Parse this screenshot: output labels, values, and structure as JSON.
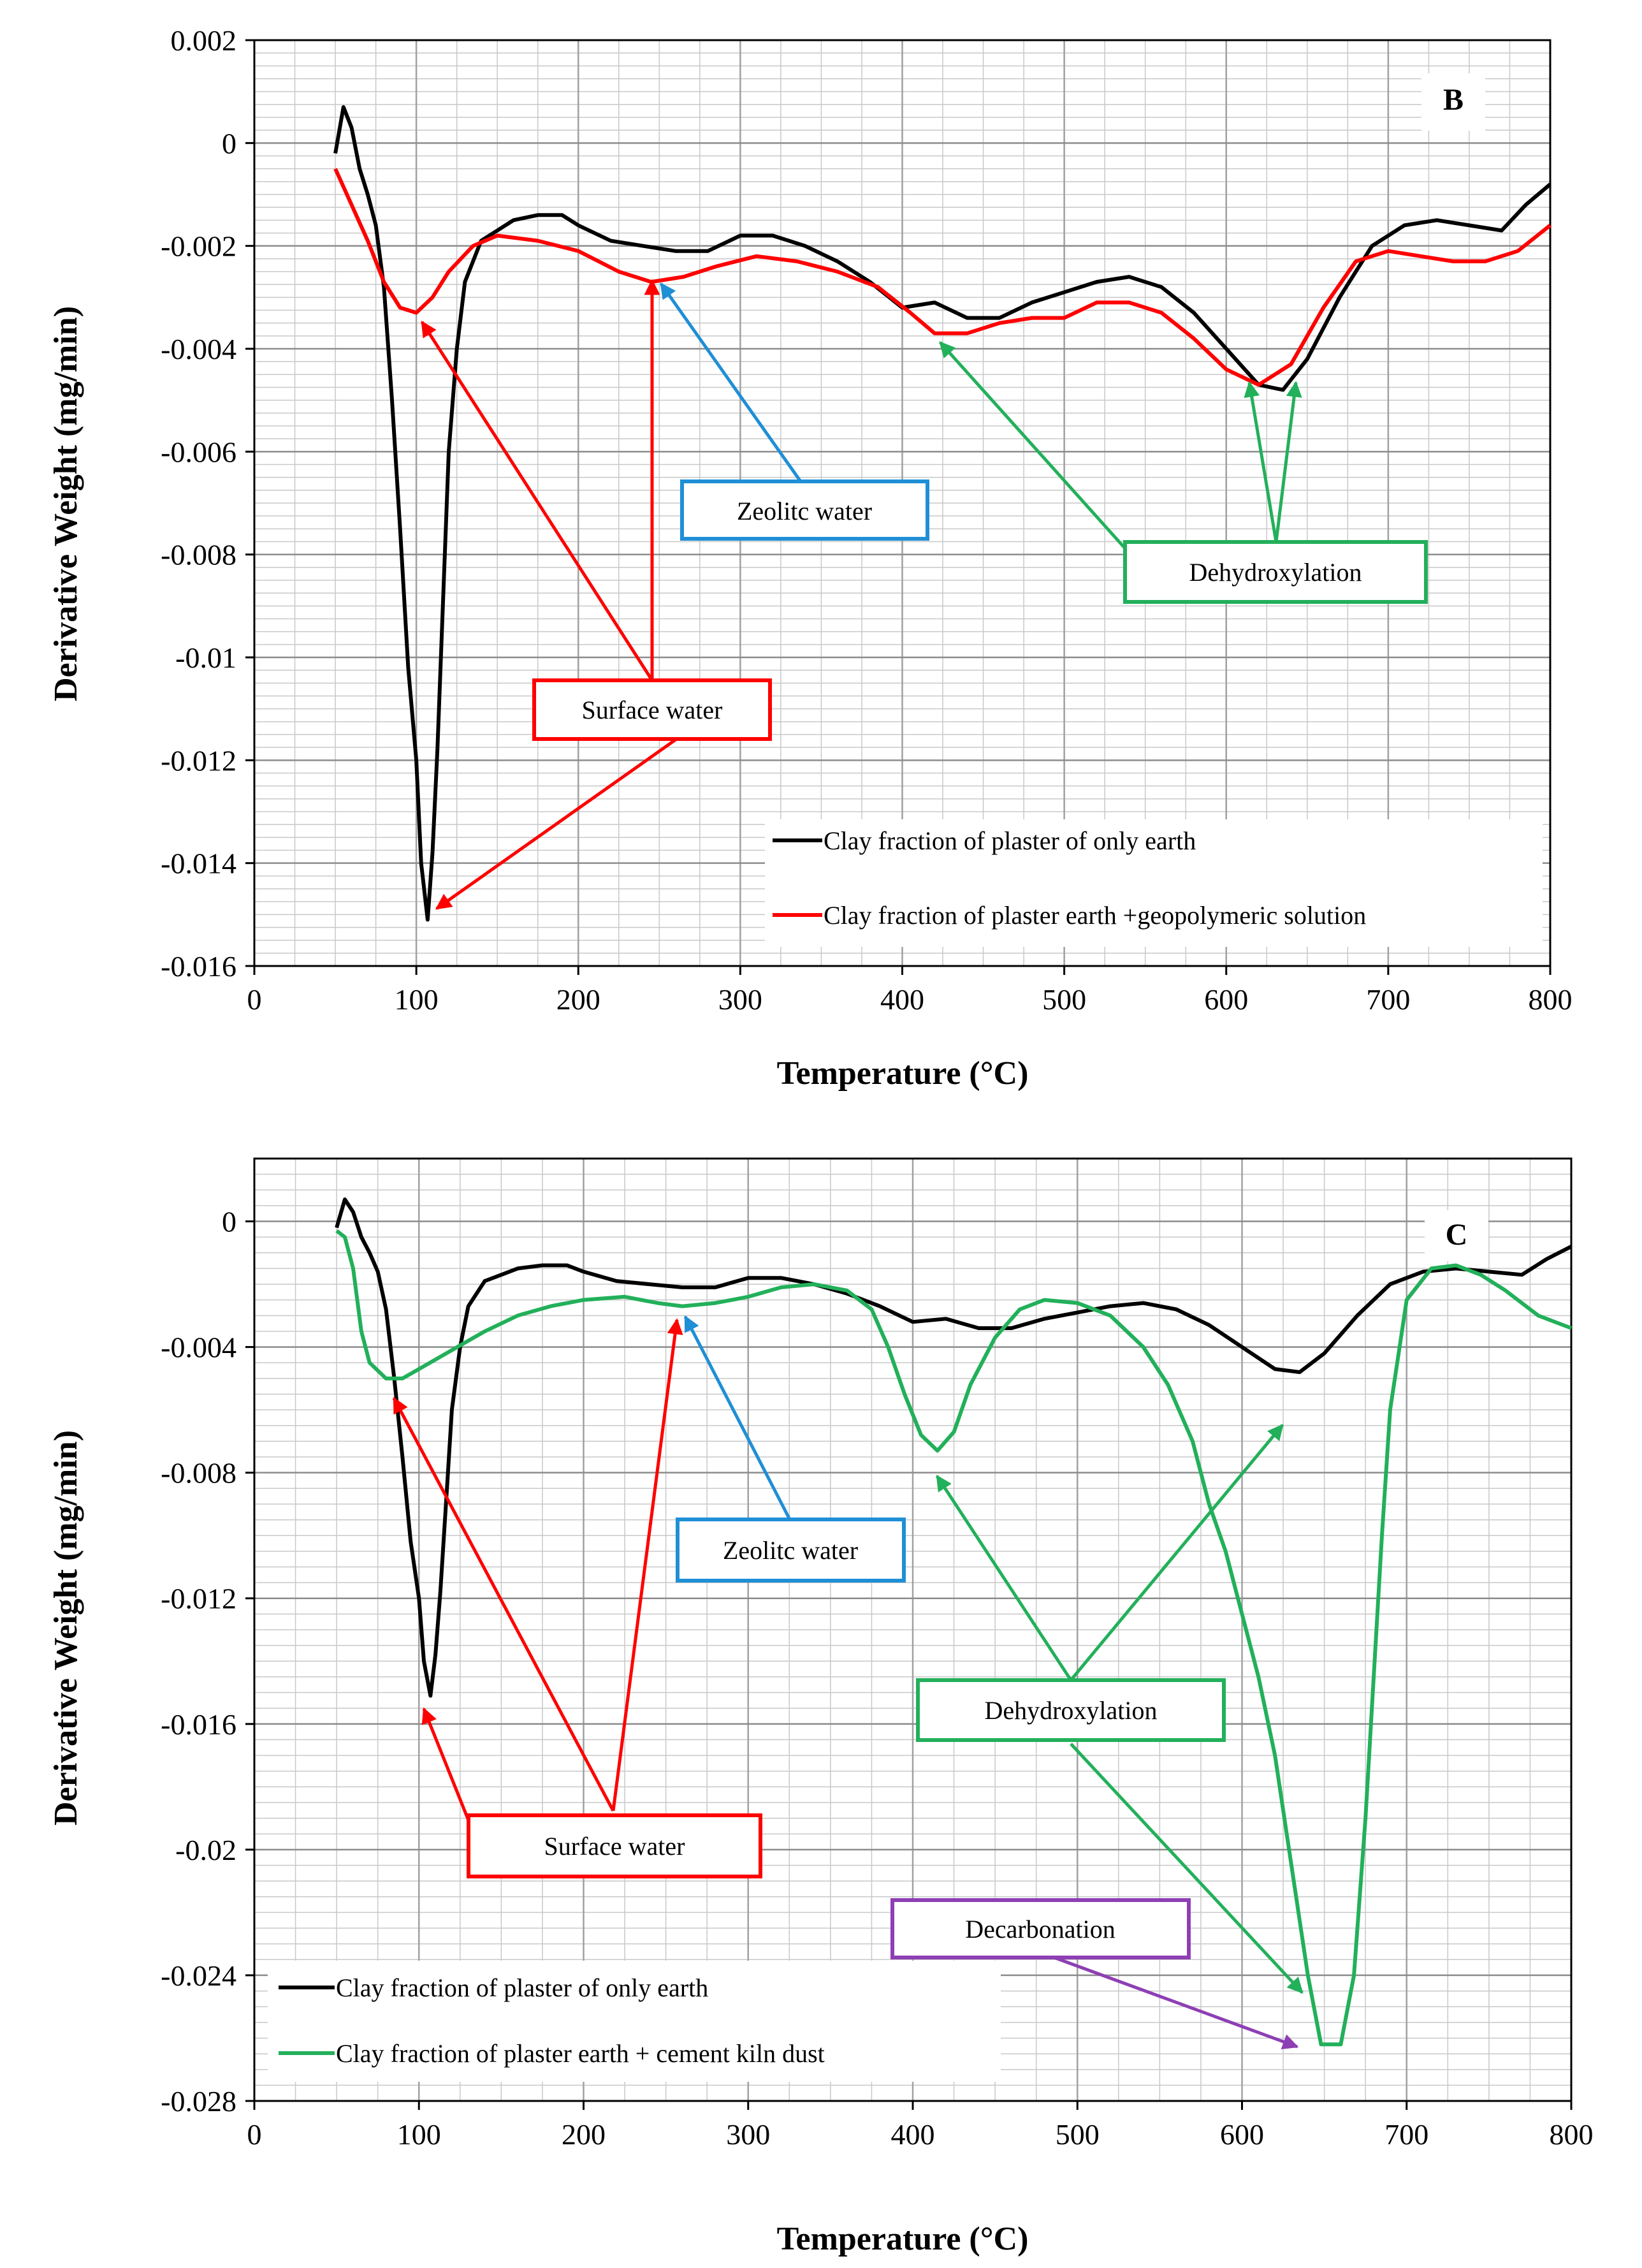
{
  "chart_data": [
    {
      "type": "line",
      "panel_label": "B",
      "xlabel": "Temperature (°C)",
      "ylabel": "Derivative Weight (mg/min)",
      "xlim": [
        0,
        800
      ],
      "ylim": [
        -0.016,
        0.002
      ],
      "x_ticks": [
        0,
        100,
        200,
        300,
        400,
        500,
        600,
        700,
        800
      ],
      "y_ticks": [
        0.002,
        0,
        -0.002,
        -0.004,
        -0.006,
        -0.008,
        -0.01,
        -0.012,
        -0.014,
        -0.016
      ],
      "x_tick_labels": [
        "0",
        "100",
        "200",
        "300",
        "400",
        "500",
        "600",
        "700",
        "800"
      ],
      "y_tick_labels": [
        "0.002",
        "0",
        "-0.002",
        "-0.004",
        "-0.006",
        "-0.008",
        "-0.01",
        "-0.012",
        "-0.014",
        "-0.016"
      ],
      "series": [
        {
          "name": "Clay fraction of plaster of only earth",
          "color": "#000000",
          "points": [
            [
              50,
              -0.0002
            ],
            [
              55,
              0.0007
            ],
            [
              60,
              0.0003
            ],
            [
              65,
              -0.0005
            ],
            [
              70,
              -0.001
            ],
            [
              75,
              -0.0016
            ],
            [
              80,
              -0.0028
            ],
            [
              85,
              -0.005
            ],
            [
              90,
              -0.0075
            ],
            [
              95,
              -0.0102
            ],
            [
              100,
              -0.012
            ],
            [
              103,
              -0.014
            ],
            [
              107,
              -0.0151
            ],
            [
              110,
              -0.0138
            ],
            [
              113,
              -0.0118
            ],
            [
              117,
              -0.0085
            ],
            [
              120,
              -0.006
            ],
            [
              125,
              -0.004
            ],
            [
              130,
              -0.0027
            ],
            [
              140,
              -0.0019
            ],
            [
              150,
              -0.0017
            ],
            [
              160,
              -0.0015
            ],
            [
              175,
              -0.0014
            ],
            [
              190,
              -0.0014
            ],
            [
              200,
              -0.0016
            ],
            [
              220,
              -0.0019
            ],
            [
              240,
              -0.002
            ],
            [
              260,
              -0.0021
            ],
            [
              280,
              -0.0021
            ],
            [
              300,
              -0.0018
            ],
            [
              320,
              -0.0018
            ],
            [
              340,
              -0.002
            ],
            [
              360,
              -0.0023
            ],
            [
              380,
              -0.0027
            ],
            [
              400,
              -0.0032
            ],
            [
              420,
              -0.0031
            ],
            [
              440,
              -0.0034
            ],
            [
              460,
              -0.0034
            ],
            [
              480,
              -0.0031
            ],
            [
              500,
              -0.0029
            ],
            [
              520,
              -0.0027
            ],
            [
              540,
              -0.0026
            ],
            [
              560,
              -0.0028
            ],
            [
              580,
              -0.0033
            ],
            [
              600,
              -0.004
            ],
            [
              620,
              -0.0047
            ],
            [
              635,
              -0.0048
            ],
            [
              650,
              -0.0042
            ],
            [
              670,
              -0.003
            ],
            [
              690,
              -0.002
            ],
            [
              710,
              -0.0016
            ],
            [
              730,
              -0.0015
            ],
            [
              750,
              -0.0016
            ],
            [
              770,
              -0.0017
            ],
            [
              785,
              -0.0012
            ],
            [
              800,
              -0.0008
            ]
          ]
        },
        {
          "name": "Clay fraction of plaster earth +geopolymeric solution",
          "color": "#ff0000",
          "points": [
            [
              50,
              -0.0005
            ],
            [
              60,
              -0.0012
            ],
            [
              70,
              -0.0019
            ],
            [
              80,
              -0.0027
            ],
            [
              90,
              -0.0032
            ],
            [
              100,
              -0.0033
            ],
            [
              110,
              -0.003
            ],
            [
              120,
              -0.0025
            ],
            [
              135,
              -0.002
            ],
            [
              150,
              -0.0018
            ],
            [
              175,
              -0.0019
            ],
            [
              200,
              -0.0021
            ],
            [
              225,
              -0.0025
            ],
            [
              245,
              -0.0027
            ],
            [
              265,
              -0.0026
            ],
            [
              285,
              -0.0024
            ],
            [
              310,
              -0.0022
            ],
            [
              335,
              -0.0023
            ],
            [
              360,
              -0.0025
            ],
            [
              385,
              -0.0028
            ],
            [
              405,
              -0.0033
            ],
            [
              420,
              -0.0037
            ],
            [
              440,
              -0.0037
            ],
            [
              460,
              -0.0035
            ],
            [
              480,
              -0.0034
            ],
            [
              500,
              -0.0034
            ],
            [
              520,
              -0.0031
            ],
            [
              540,
              -0.0031
            ],
            [
              560,
              -0.0033
            ],
            [
              580,
              -0.0038
            ],
            [
              600,
              -0.0044
            ],
            [
              620,
              -0.0047
            ],
            [
              640,
              -0.0043
            ],
            [
              660,
              -0.0032
            ],
            [
              680,
              -0.0023
            ],
            [
              700,
              -0.0021
            ],
            [
              720,
              -0.0022
            ],
            [
              740,
              -0.0023
            ],
            [
              760,
              -0.0023
            ],
            [
              780,
              -0.0021
            ],
            [
              800,
              -0.0016
            ]
          ]
        }
      ],
      "annotations": [
        {
          "label": "Zeolitc water",
          "color": "#1f8fd6"
        },
        {
          "label": "Dehydroxylation",
          "color": "#22b05a"
        },
        {
          "label": "Surface water",
          "color": "#ff0000"
        }
      ]
    },
    {
      "type": "line",
      "panel_label": "C",
      "xlabel": "Temperature (°C)",
      "ylabel": "Derivative Weight (mg/min)",
      "xlim": [
        0,
        800
      ],
      "ylim": [
        -0.028,
        0.002
      ],
      "x_ticks": [
        0,
        100,
        200,
        300,
        400,
        500,
        600,
        700,
        800
      ],
      "y_ticks": [
        0,
        -0.004,
        -0.008,
        -0.012,
        -0.016,
        -0.02,
        -0.024,
        -0.028
      ],
      "x_tick_labels": [
        "0",
        "100",
        "200",
        "300",
        "400",
        "500",
        "600",
        "700",
        "800"
      ],
      "y_tick_labels": [
        "0",
        "-0.004",
        "-0.008",
        "-0.012",
        "-0.016",
        "-0.02",
        "-0.024",
        "-0.028"
      ],
      "series": [
        {
          "name": "Clay fraction of plaster of only earth",
          "color": "#000000",
          "points": [
            [
              50,
              -0.0002
            ],
            [
              55,
              0.0007
            ],
            [
              60,
              0.0003
            ],
            [
              65,
              -0.0005
            ],
            [
              70,
              -0.001
            ],
            [
              75,
              -0.0016
            ],
            [
              80,
              -0.0028
            ],
            [
              85,
              -0.005
            ],
            [
              90,
              -0.0075
            ],
            [
              95,
              -0.0102
            ],
            [
              100,
              -0.012
            ],
            [
              103,
              -0.014
            ],
            [
              107,
              -0.0151
            ],
            [
              110,
              -0.0138
            ],
            [
              113,
              -0.0118
            ],
            [
              117,
              -0.0085
            ],
            [
              120,
              -0.006
            ],
            [
              125,
              -0.004
            ],
            [
              130,
              -0.0027
            ],
            [
              140,
              -0.0019
            ],
            [
              150,
              -0.0017
            ],
            [
              160,
              -0.0015
            ],
            [
              175,
              -0.0014
            ],
            [
              190,
              -0.0014
            ],
            [
              200,
              -0.0016
            ],
            [
              220,
              -0.0019
            ],
            [
              240,
              -0.002
            ],
            [
              260,
              -0.0021
            ],
            [
              280,
              -0.0021
            ],
            [
              300,
              -0.0018
            ],
            [
              320,
              -0.0018
            ],
            [
              340,
              -0.002
            ],
            [
              360,
              -0.0023
            ],
            [
              380,
              -0.0027
            ],
            [
              400,
              -0.0032
            ],
            [
              420,
              -0.0031
            ],
            [
              440,
              -0.0034
            ],
            [
              460,
              -0.0034
            ],
            [
              480,
              -0.0031
            ],
            [
              500,
              -0.0029
            ],
            [
              520,
              -0.0027
            ],
            [
              540,
              -0.0026
            ],
            [
              560,
              -0.0028
            ],
            [
              580,
              -0.0033
            ],
            [
              600,
              -0.004
            ],
            [
              620,
              -0.0047
            ],
            [
              635,
              -0.0048
            ],
            [
              650,
              -0.0042
            ],
            [
              670,
              -0.003
            ],
            [
              690,
              -0.002
            ],
            [
              710,
              -0.0016
            ],
            [
              730,
              -0.0015
            ],
            [
              750,
              -0.0016
            ],
            [
              770,
              -0.0017
            ],
            [
              785,
              -0.0012
            ],
            [
              800,
              -0.0008
            ]
          ]
        },
        {
          "name": "Clay fraction of plaster earth + cement kiln dust",
          "color": "#22b05a",
          "points": [
            [
              50,
              -0.0003
            ],
            [
              55,
              -0.0005
            ],
            [
              60,
              -0.0015
            ],
            [
              65,
              -0.0035
            ],
            [
              70,
              -0.0045
            ],
            [
              80,
              -0.005
            ],
            [
              90,
              -0.005
            ],
            [
              100,
              -0.0047
            ],
            [
              120,
              -0.0041
            ],
            [
              140,
              -0.0035
            ],
            [
              160,
              -0.003
            ],
            [
              180,
              -0.0027
            ],
            [
              200,
              -0.0025
            ],
            [
              225,
              -0.0024
            ],
            [
              245,
              -0.0026
            ],
            [
              260,
              -0.0027
            ],
            [
              280,
              -0.0026
            ],
            [
              300,
              -0.0024
            ],
            [
              320,
              -0.0021
            ],
            [
              340,
              -0.002
            ],
            [
              360,
              -0.0022
            ],
            [
              375,
              -0.0028
            ],
            [
              385,
              -0.004
            ],
            [
              395,
              -0.0055
            ],
            [
              405,
              -0.0068
            ],
            [
              415,
              -0.0073
            ],
            [
              425,
              -0.0067
            ],
            [
              435,
              -0.0052
            ],
            [
              450,
              -0.0037
            ],
            [
              465,
              -0.0028
            ],
            [
              480,
              -0.0025
            ],
            [
              500,
              -0.0026
            ],
            [
              520,
              -0.003
            ],
            [
              540,
              -0.004
            ],
            [
              555,
              -0.0052
            ],
            [
              570,
              -0.007
            ],
            [
              580,
              -0.009
            ],
            [
              590,
              -0.0105
            ],
            [
              600,
              -0.0125
            ],
            [
              610,
              -0.0145
            ],
            [
              620,
              -0.017
            ],
            [
              630,
              -0.0205
            ],
            [
              640,
              -0.024
            ],
            [
              648,
              -0.0262
            ],
            [
              660,
              -0.0262
            ],
            [
              668,
              -0.024
            ],
            [
              675,
              -0.019
            ],
            [
              680,
              -0.0145
            ],
            [
              685,
              -0.01
            ],
            [
              690,
              -0.006
            ],
            [
              700,
              -0.0025
            ],
            [
              715,
              -0.0015
            ],
            [
              730,
              -0.0014
            ],
            [
              745,
              -0.0017
            ],
            [
              760,
              -0.0022
            ],
            [
              780,
              -0.003
            ],
            [
              800,
              -0.0034
            ]
          ]
        }
      ],
      "annotations": [
        {
          "label": "Zeolitc water",
          "color": "#1f8fd6"
        },
        {
          "label": "Dehydroxylation",
          "color": "#22b05a"
        },
        {
          "label": "Surface water",
          "color": "#ff0000"
        },
        {
          "label": "Decarbonation",
          "color": "#8e3fb4"
        }
      ]
    }
  ]
}
